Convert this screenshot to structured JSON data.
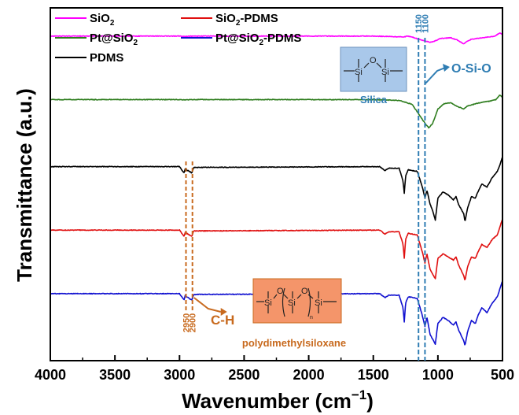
{
  "chart_data": {
    "type": "line",
    "xlabel": "Wavenumber (cm⁻¹)",
    "xlabel_main": "Wavenumber (cm",
    "xlabel_sup": "−1",
    "xlabel_close": ")",
    "ylabel": "Transmittance (a.u.)",
    "xlim": [
      4000,
      500
    ],
    "x_ticks": [
      4000,
      3500,
      3000,
      2500,
      2000,
      1500,
      1000,
      500
    ],
    "x_tick_labels": [
      "4000",
      "3500",
      "3000",
      "2500",
      "2000",
      "1500",
      "1000",
      "500"
    ],
    "y_ticks_shown": false,
    "grid": false,
    "legend_placement": "top-left",
    "legend_cols": [
      [
        {
          "name": "SiO",
          "sub": "2",
          "suffix": "",
          "color": "#ff00ff"
        },
        {
          "name": "Pt@SiO",
          "sub": "2",
          "suffix": "",
          "color": "#2e7d1e"
        },
        {
          "name": "PDMS",
          "sub": "",
          "suffix": "",
          "color": "#000000"
        }
      ],
      [
        {
          "name": "SiO",
          "sub": "2",
          "suffix": "-PDMS",
          "color": "#e01010"
        },
        {
          "name": "Pt@SiO",
          "sub": "2",
          "suffix": "-PDMS",
          "color": "#1010d0"
        }
      ]
    ],
    "series": [
      {
        "name": "SiO2",
        "color": "#ff00ff",
        "baseline": 0.92,
        "points": [
          [
            4000,
            0.0
          ],
          [
            3000,
            0.0
          ],
          [
            2950,
            -0.3
          ],
          [
            2900,
            0.0
          ],
          [
            1500,
            0.0
          ],
          [
            1260,
            -1
          ],
          [
            1240,
            0
          ],
          [
            1200,
            -1
          ],
          [
            1150,
            -4
          ],
          [
            1100,
            -6
          ],
          [
            1060,
            -8
          ],
          [
            1020,
            -6
          ],
          [
            980,
            -3
          ],
          [
            900,
            -2
          ],
          [
            850,
            -5
          ],
          [
            800,
            -10
          ],
          [
            770,
            -6
          ],
          [
            740,
            -4
          ],
          [
            700,
            -3
          ],
          [
            650,
            -2
          ],
          [
            600,
            -1
          ],
          [
            560,
            0
          ],
          [
            520,
            4
          ],
          [
            500,
            2
          ]
        ]
      },
      {
        "name": "Pt@SiO2",
        "color": "#2e7d1e",
        "baseline": 0.74,
        "points": [
          [
            4000,
            0.0
          ],
          [
            3000,
            0.0
          ],
          [
            2950,
            -0.3
          ],
          [
            2900,
            0.0
          ],
          [
            1500,
            0.0
          ],
          [
            1300,
            -1
          ],
          [
            1200,
            -6
          ],
          [
            1150,
            -18
          ],
          [
            1100,
            -30
          ],
          [
            1070,
            -36
          ],
          [
            1040,
            -30
          ],
          [
            1000,
            -12
          ],
          [
            950,
            -5
          ],
          [
            900,
            -4
          ],
          [
            860,
            -8
          ],
          [
            800,
            -12
          ],
          [
            770,
            -8
          ],
          [
            700,
            -5
          ],
          [
            650,
            -3
          ],
          [
            600,
            -2
          ],
          [
            550,
            0
          ],
          [
            520,
            6
          ],
          [
            500,
            3
          ]
        ]
      },
      {
        "name": "PDMS",
        "color": "#000000",
        "baseline": 0.55,
        "points": [
          [
            4000,
            0.0
          ],
          [
            3000,
            0.0
          ],
          [
            2965,
            -8
          ],
          [
            2955,
            -2
          ],
          [
            2945,
            -4
          ],
          [
            2905,
            -8
          ],
          [
            2890,
            -1
          ],
          [
            1450,
            0
          ],
          [
            1410,
            -5
          ],
          [
            1380,
            -2
          ],
          [
            1300,
            -2
          ],
          [
            1270,
            -18
          ],
          [
            1260,
            -34
          ],
          [
            1250,
            -12
          ],
          [
            1230,
            -4
          ],
          [
            1160,
            -6
          ],
          [
            1120,
            -26
          ],
          [
            1100,
            -40
          ],
          [
            1085,
            -30
          ],
          [
            1060,
            -48
          ],
          [
            1040,
            -56
          ],
          [
            1020,
            -68
          ],
          [
            1000,
            -40
          ],
          [
            960,
            -32
          ],
          [
            920,
            -36
          ],
          [
            880,
            -42
          ],
          [
            860,
            -38
          ],
          [
            840,
            -48
          ],
          [
            800,
            -60
          ],
          [
            790,
            -70
          ],
          [
            770,
            -52
          ],
          [
            740,
            -38
          ],
          [
            710,
            -40
          ],
          [
            690,
            -32
          ],
          [
            660,
            -22
          ],
          [
            620,
            -26
          ],
          [
            580,
            -14
          ],
          [
            540,
            -6
          ],
          [
            520,
            2
          ],
          [
            505,
            10
          ],
          [
            500,
            12
          ]
        ]
      },
      {
        "name": "SiO2-PDMS",
        "color": "#e01010",
        "baseline": 0.37,
        "points": [
          [
            4000,
            0.0
          ],
          [
            3000,
            0.0
          ],
          [
            2965,
            -8
          ],
          [
            2955,
            -2
          ],
          [
            2945,
            -4
          ],
          [
            2905,
            -8
          ],
          [
            2890,
            -1
          ],
          [
            1450,
            0
          ],
          [
            1410,
            -5
          ],
          [
            1380,
            -2
          ],
          [
            1300,
            -2
          ],
          [
            1270,
            -18
          ],
          [
            1260,
            -36
          ],
          [
            1250,
            -12
          ],
          [
            1230,
            -4
          ],
          [
            1160,
            -6
          ],
          [
            1120,
            -28
          ],
          [
            1100,
            -42
          ],
          [
            1085,
            -30
          ],
          [
            1060,
            -50
          ],
          [
            1040,
            -56
          ],
          [
            1020,
            -62
          ],
          [
            1000,
            -36
          ],
          [
            960,
            -30
          ],
          [
            920,
            -34
          ],
          [
            880,
            -38
          ],
          [
            860,
            -34
          ],
          [
            840,
            -44
          ],
          [
            800,
            -58
          ],
          [
            790,
            -64
          ],
          [
            770,
            -46
          ],
          [
            740,
            -34
          ],
          [
            710,
            -36
          ],
          [
            690,
            -28
          ],
          [
            660,
            -18
          ],
          [
            620,
            -22
          ],
          [
            580,
            -12
          ],
          [
            540,
            -6
          ],
          [
            520,
            4
          ],
          [
            505,
            12
          ],
          [
            500,
            14
          ]
        ]
      },
      {
        "name": "Pt@SiO2-PDMS",
        "color": "#1010d0",
        "baseline": 0.19,
        "points": [
          [
            4000,
            0.0
          ],
          [
            3000,
            0.0
          ],
          [
            2965,
            -8
          ],
          [
            2955,
            -2
          ],
          [
            2945,
            -4
          ],
          [
            2905,
            -8
          ],
          [
            2890,
            -1
          ],
          [
            1450,
            0
          ],
          [
            1410,
            -5
          ],
          [
            1380,
            -2
          ],
          [
            1300,
            -2
          ],
          [
            1270,
            -18
          ],
          [
            1260,
            -36
          ],
          [
            1250,
            -12
          ],
          [
            1230,
            -4
          ],
          [
            1160,
            -6
          ],
          [
            1120,
            -28
          ],
          [
            1100,
            -42
          ],
          [
            1085,
            -30
          ],
          [
            1060,
            -52
          ],
          [
            1040,
            -58
          ],
          [
            1020,
            -64
          ],
          [
            1000,
            -38
          ],
          [
            960,
            -30
          ],
          [
            920,
            -34
          ],
          [
            880,
            -40
          ],
          [
            860,
            -36
          ],
          [
            840,
            -46
          ],
          [
            800,
            -60
          ],
          [
            790,
            -66
          ],
          [
            770,
            -48
          ],
          [
            740,
            -34
          ],
          [
            710,
            -38
          ],
          [
            690,
            -28
          ],
          [
            660,
            -18
          ],
          [
            620,
            -24
          ],
          [
            580,
            -12
          ],
          [
            540,
            -4
          ],
          [
            520,
            6
          ],
          [
            505,
            14
          ],
          [
            500,
            16
          ]
        ]
      }
    ],
    "annotations": {
      "ch_lines": [
        2950,
        2900
      ],
      "ch_label_2950": "2950",
      "ch_label_2900": "2900",
      "ch_text": "C-H",
      "ch_color": "#c86a1e",
      "sio_lines": [
        1150,
        1100
      ],
      "sio_label_1150": "1150",
      "sio_label_1100": "1100",
      "sio_text": "O-Si-O",
      "sio_color": "#2f7db3",
      "silica_label": "Silica",
      "silica_box_color": "#a9c8ea",
      "pdms_label": "polydimethylsiloxane",
      "pdms_box_color": "#f4956a",
      "si_text": "Si",
      "o_text": "O",
      "n_text": "n"
    }
  }
}
